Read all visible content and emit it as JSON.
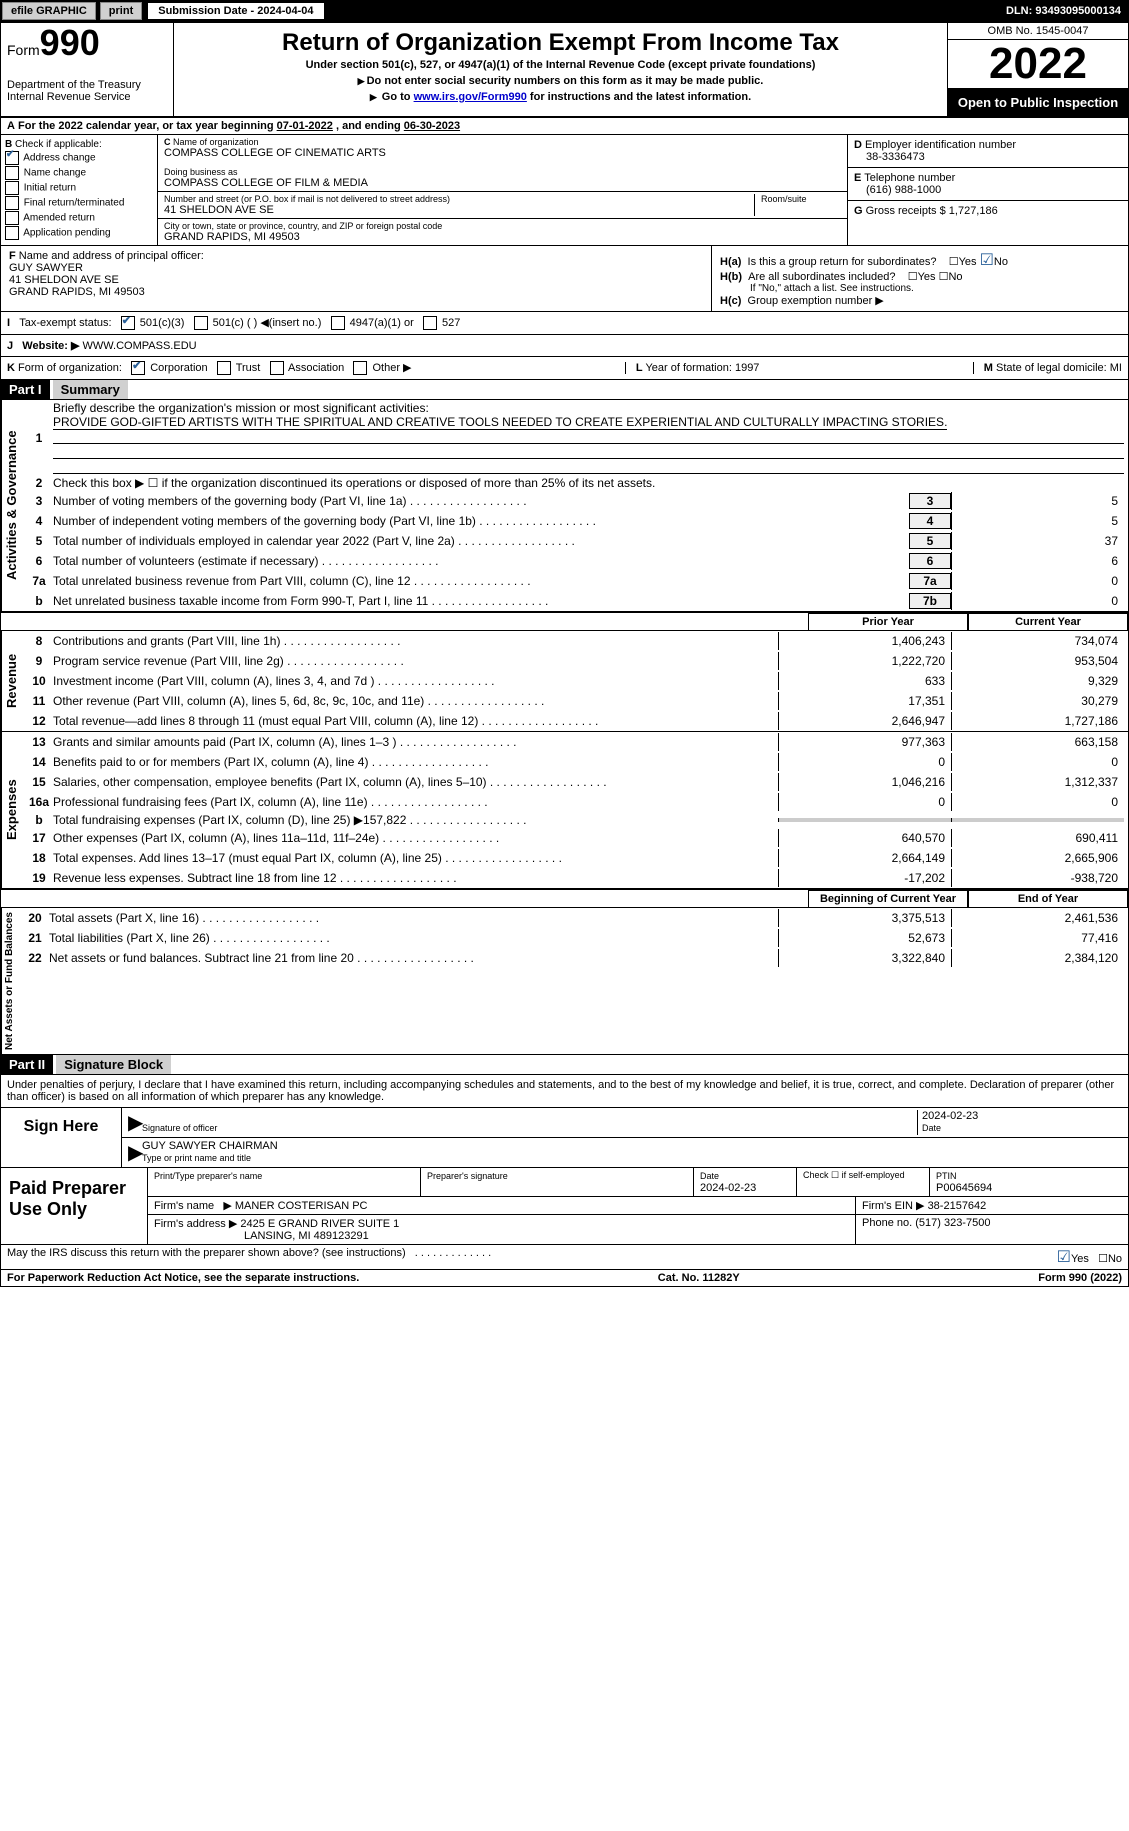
{
  "colors": {
    "header_band": "#000000",
    "check_color": "#2a6099",
    "link_color": "#0000cc",
    "background": "#ffffff",
    "shaded": "#cccccc"
  },
  "top_bar": {
    "efile": "efile GRAPHIC",
    "print": "print",
    "sub_date_label": "Submission Date - 2024-04-04",
    "dln": "DLN: 93493095000134"
  },
  "header": {
    "form_label": "Form",
    "form_num": "990",
    "dept": "Department of the Treasury",
    "irs": "Internal Revenue Service",
    "title": "Return of Organization Exempt From Income Tax",
    "subtitle": "Under section 501(c), 527, or 4947(a)(1) of the Internal Revenue Code (except private foundations)",
    "note1": "Do not enter social security numbers on this form as it may be made public.",
    "note2_pre": "Go to ",
    "note2_link": "www.irs.gov/Form990",
    "note2_post": " for instructions and the latest information.",
    "omb": "OMB No. 1545-0047",
    "year": "2022",
    "open": "Open to Public Inspection"
  },
  "period": {
    "label_pre": "For the 2022 calendar year, or tax year beginning ",
    "begin": "07-01-2022",
    "label_mid": " , and ending ",
    "end": "06-30-2023"
  },
  "section_b": {
    "label": "Check if applicable:",
    "address_change": "Address change",
    "name_change": "Name change",
    "initial": "Initial return",
    "final": "Final return/terminated",
    "amended": "Amended return",
    "app": "Application pending",
    "checked": "address_change"
  },
  "section_c": {
    "name_label": "Name of organization",
    "name": "COMPASS COLLEGE OF CINEMATIC ARTS",
    "dba_label": "Doing business as",
    "dba": "COMPASS COLLEGE OF FILM & MEDIA",
    "addr_label": "Number and street (or P.O. box if mail is not delivered to street address)",
    "room_label": "Room/suite",
    "addr": "41 SHELDON AVE SE",
    "city_label": "City or town, state or province, country, and ZIP or foreign postal code",
    "city": "GRAND RAPIDS, MI  49503"
  },
  "section_d": {
    "ein_label": "Employer identification number",
    "ein": "38-3336473",
    "phone_label": "Telephone number",
    "phone": "(616) 988-1000",
    "gross_label": "Gross receipts $",
    "gross": "1,727,186"
  },
  "section_f": {
    "label": "Name and address of principal officer:",
    "name": "GUY SAWYER",
    "addr1": "41 SHELDON AVE SE",
    "addr2": "GRAND RAPIDS, MI  49503"
  },
  "section_h": {
    "ha": "Is this a group return for subordinates?",
    "ha_yes": "Yes",
    "ha_no": "No",
    "hb": "Are all subordinates included?",
    "hb_note": "If \"No,\" attach a list. See instructions.",
    "hc": "Group exemption number"
  },
  "section_i": {
    "label": "Tax-exempt status:",
    "opt1": "501(c)(3)",
    "opt2": "501(c) (  ) ◀(insert no.)",
    "opt3": "4947(a)(1) or",
    "opt4": "527"
  },
  "section_j": {
    "label": "Website:",
    "value": "WWW.COMPASS.EDU"
  },
  "section_k": {
    "label": "Form of organization:",
    "corp": "Corporation",
    "trust": "Trust",
    "assoc": "Association",
    "other": "Other"
  },
  "section_l": {
    "label": "Year of formation:",
    "value": "1997"
  },
  "section_m": {
    "label": "State of legal domicile:",
    "value": "MI"
  },
  "part1": {
    "title": "Part I",
    "name": "Summary",
    "line1_label": "Briefly describe the organization's mission or most significant activities:",
    "line1_text": "PROVIDE GOD-GIFTED ARTISTS WITH THE SPIRITUAL AND CREATIVE TOOLS NEEDED TO CREATE EXPERIENTIAL AND CULTURALLY IMPACTING STORIES.",
    "line2": "Check this box ▶ ☐ if the organization discontinued its operations or disposed of more than 25% of its net assets.",
    "vlabel_gov": "Activities & Governance",
    "vlabel_rev": "Revenue",
    "vlabel_exp": "Expenses",
    "vlabel_net": "Net Assets or Fund Balances",
    "lines_gov": [
      {
        "n": "3",
        "d": "Number of voting members of the governing body (Part VI, line 1a)",
        "box": "3",
        "v": "5"
      },
      {
        "n": "4",
        "d": "Number of independent voting members of the governing body (Part VI, line 1b)",
        "box": "4",
        "v": "5"
      },
      {
        "n": "5",
        "d": "Total number of individuals employed in calendar year 2022 (Part V, line 2a)",
        "box": "5",
        "v": "37"
      },
      {
        "n": "6",
        "d": "Total number of volunteers (estimate if necessary)",
        "box": "6",
        "v": "6"
      },
      {
        "n": "7a",
        "d": "Total unrelated business revenue from Part VIII, column (C), line 12",
        "box": "7a",
        "v": "0"
      },
      {
        "n": "b",
        "d": "Net unrelated business taxable income from Form 990-T, Part I, line 11",
        "box": "7b",
        "v": "0"
      }
    ],
    "prior_label": "Prior Year",
    "current_label": "Current Year",
    "lines_rev": [
      {
        "n": "8",
        "d": "Contributions and grants (Part VIII, line 1h)",
        "py": "1,406,243",
        "cy": "734,074"
      },
      {
        "n": "9",
        "d": "Program service revenue (Part VIII, line 2g)",
        "py": "1,222,720",
        "cy": "953,504"
      },
      {
        "n": "10",
        "d": "Investment income (Part VIII, column (A), lines 3, 4, and 7d )",
        "py": "633",
        "cy": "9,329"
      },
      {
        "n": "11",
        "d": "Other revenue (Part VIII, column (A), lines 5, 6d, 8c, 9c, 10c, and 11e)",
        "py": "17,351",
        "cy": "30,279"
      },
      {
        "n": "12",
        "d": "Total revenue—add lines 8 through 11 (must equal Part VIII, column (A), line 12)",
        "py": "2,646,947",
        "cy": "1,727,186"
      }
    ],
    "lines_exp": [
      {
        "n": "13",
        "d": "Grants and similar amounts paid (Part IX, column (A), lines 1–3 )",
        "py": "977,363",
        "cy": "663,158"
      },
      {
        "n": "14",
        "d": "Benefits paid to or for members (Part IX, column (A), line 4)",
        "py": "0",
        "cy": "0"
      },
      {
        "n": "15",
        "d": "Salaries, other compensation, employee benefits (Part IX, column (A), lines 5–10)",
        "py": "1,046,216",
        "cy": "1,312,337"
      },
      {
        "n": "16a",
        "d": "Professional fundraising fees (Part IX, column (A), line 11e)",
        "py": "0",
        "cy": "0"
      },
      {
        "n": "b",
        "d": "Total fundraising expenses (Part IX, column (D), line 25) ▶157,822",
        "py": "",
        "cy": "",
        "shaded": true
      },
      {
        "n": "17",
        "d": "Other expenses (Part IX, column (A), lines 11a–11d, 11f–24e)",
        "py": "640,570",
        "cy": "690,411"
      },
      {
        "n": "18",
        "d": "Total expenses. Add lines 13–17 (must equal Part IX, column (A), line 25)",
        "py": "2,664,149",
        "cy": "2,665,906"
      },
      {
        "n": "19",
        "d": "Revenue less expenses. Subtract line 18 from line 12",
        "py": "-17,202",
        "cy": "-938,720"
      }
    ],
    "begin_label": "Beginning of Current Year",
    "end_label": "End of Year",
    "lines_net": [
      {
        "n": "20",
        "d": "Total assets (Part X, line 16)",
        "py": "3,375,513",
        "cy": "2,461,536"
      },
      {
        "n": "21",
        "d": "Total liabilities (Part X, line 26)",
        "py": "52,673",
        "cy": "77,416"
      },
      {
        "n": "22",
        "d": "Net assets or fund balances. Subtract line 21 from line 20",
        "py": "3,322,840",
        "cy": "2,384,120"
      }
    ]
  },
  "part2": {
    "title": "Part II",
    "name": "Signature Block",
    "declaration": "Under penalties of perjury, I declare that I have examined this return, including accompanying schedules and statements, and to the best of my knowledge and belief, it is true, correct, and complete. Declaration of preparer (other than officer) is based on all information of which preparer has any knowledge.",
    "sign_here": "Sign Here",
    "sig_of_officer": "Signature of officer",
    "date": "Date",
    "sig_date": "2024-02-23",
    "officer_name": "GUY SAWYER CHAIRMAN",
    "type_name": "Type or print name and title",
    "paid_prep": "Paid Preparer Use Only",
    "print_name_label": "Print/Type preparer's name",
    "prep_sig_label": "Preparer's signature",
    "prep_date_label": "Date",
    "prep_date": "2024-02-23",
    "check_self": "Check ☐ if self-employed",
    "ptin_label": "PTIN",
    "ptin": "P00645694",
    "firm_name_label": "Firm's name",
    "firm_name": "MANER COSTERISAN PC",
    "firm_ein_label": "Firm's EIN",
    "firm_ein": "38-2157642",
    "firm_addr_label": "Firm's address",
    "firm_addr1": "2425 E GRAND RIVER SUITE 1",
    "firm_addr2": "LANSING, MI  489123291",
    "phone_label": "Phone no.",
    "phone": "(517) 323-7500"
  },
  "footer": {
    "discuss": "May the IRS discuss this return with the preparer shown above? (see instructions)",
    "yes": "Yes",
    "no": "No",
    "paperwork": "For Paperwork Reduction Act Notice, see the separate instructions.",
    "cat": "Cat. No. 11282Y",
    "form": "Form 990 (2022)"
  }
}
